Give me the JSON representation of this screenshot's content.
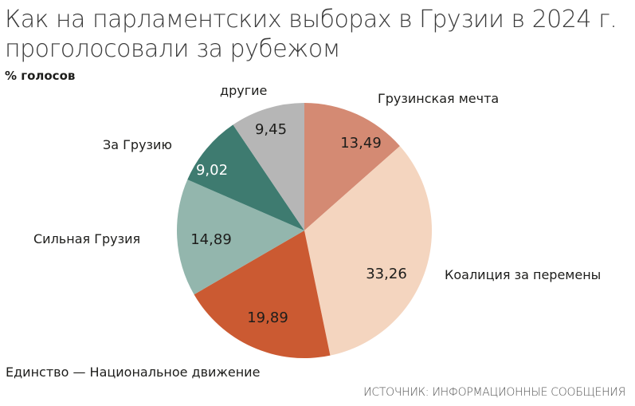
{
  "header": {
    "title": "Как на парламентских выборах в Грузии в 2024 г. проголосовали за рубежом",
    "subtitle": "% голосов"
  },
  "footer": {
    "source": "ИСТОЧНИК: ИНФОРМАЦИОННЫЕ СООБЩЕНИЯ"
  },
  "chart_data": {
    "type": "pie",
    "title": "Как на парламентских выборах в Грузии в 2024 г. проголосовали за рубежом",
    "subtitle": "% голосов",
    "start_angle": "12 o'clock, clockwise",
    "categories": [
      "Грузинская мечта",
      "Коалиция за перемены",
      "Единство — Национальное движение",
      "Сильная Грузия",
      "За Грузию",
      "другие"
    ],
    "values": [
      13.49,
      33.26,
      19.89,
      14.89,
      9.02,
      9.45
    ],
    "value_labels": [
      "13,49",
      "33,26",
      "19,89",
      "14,89",
      "9,02",
      "9,45"
    ],
    "colors": [
      "#d48a73",
      "#f4d5bf",
      "#cb5a32",
      "#93b6ad",
      "#3e7b70",
      "#b6b6b6"
    ],
    "label_colors": [
      "#1d1d1b",
      "#1d1d1b",
      "#1d1d1b",
      "#1d1d1b",
      "#ffffff",
      "#1d1d1b"
    ],
    "source": "ИСТОЧНИК: ИНФОРМАЦИОННЫЕ СООБЩЕНИЯ"
  }
}
